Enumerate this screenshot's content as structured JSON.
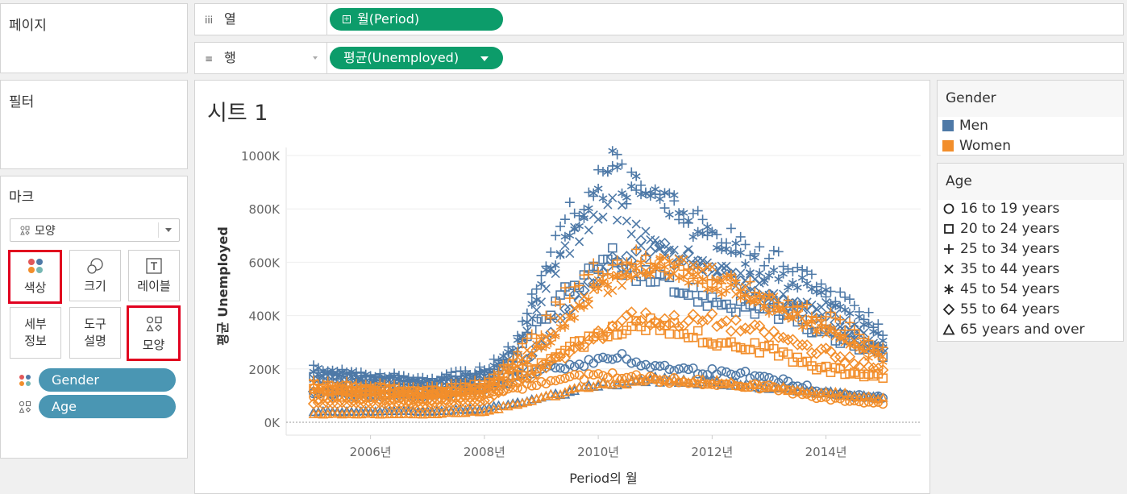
{
  "left_panel": {
    "pages_title": "페이지",
    "filters_title": "필터",
    "marks_title": "마크",
    "mark_type": "모양",
    "buttons": {
      "color": "색상",
      "size": "크기",
      "label": "레이블",
      "detail_line1": "세부",
      "detail_line2": "정보",
      "tooltip_line1": "도구",
      "tooltip_line2": "설명",
      "shape": "모양"
    },
    "mark_fields": [
      {
        "label": "Gender",
        "icon": "color-icon"
      },
      {
        "label": "Age",
        "icon": "shape-icon"
      }
    ]
  },
  "shelves": {
    "columns": {
      "label": "열",
      "icon": "iii",
      "pill": "월(Period)"
    },
    "rows": {
      "label": "행",
      "icon": "≡",
      "pill": "평균(Unemployed)"
    }
  },
  "sheet": {
    "title": "시트 1"
  },
  "legends": {
    "gender": {
      "title": "Gender",
      "items": [
        {
          "label": "Men",
          "color": "#4e79a7"
        },
        {
          "label": "Women",
          "color": "#f28e2b"
        }
      ]
    },
    "age": {
      "title": "Age",
      "items": [
        {
          "label": "16 to 19 years",
          "shape": "circle"
        },
        {
          "label": "20 to 24 years",
          "shape": "square"
        },
        {
          "label": "25 to 34 years",
          "shape": "plus"
        },
        {
          "label": "35 to 44 years",
          "shape": "cross"
        },
        {
          "label": "45 to 54 years",
          "shape": "asterisk"
        },
        {
          "label": "55 to 64 years",
          "shape": "diamond"
        },
        {
          "label": "65 years and over",
          "shape": "triangle"
        }
      ]
    }
  },
  "chart_data": {
    "type": "scatter",
    "title": "",
    "xlabel": "Period의 월",
    "ylabel": "평균 Unemployed",
    "x_ticks": [
      "2006년",
      "2008년",
      "2010년",
      "2012년",
      "2014년"
    ],
    "y_ticks": [
      "1000K",
      "800K",
      "600K",
      "400K",
      "200K",
      "0K"
    ],
    "ylim": [
      0,
      1000000
    ],
    "xlim": [
      "2005-01",
      "2015-03"
    ],
    "grid": true,
    "series": [
      {
        "gender": "Men",
        "age": "16 to 19 years",
        "points": [
          [
            "2005-01",
            110000
          ],
          [
            "2006-01",
            120000
          ],
          [
            "2007-01",
            110000
          ],
          [
            "2008-01",
            130000
          ],
          [
            "2009-01",
            190000
          ],
          [
            "2009-07",
            220000
          ],
          [
            "2010-01",
            230000
          ],
          [
            "2010-04",
            250000
          ],
          [
            "2010-07",
            240000
          ],
          [
            "2011-01",
            210000
          ],
          [
            "2012-01",
            190000
          ],
          [
            "2013-01",
            170000
          ],
          [
            "2014-01",
            110000
          ],
          [
            "2015-01",
            90000
          ]
        ]
      },
      {
        "gender": "Men",
        "age": "20 to 24 years",
        "points": [
          [
            "2005-01",
            170000
          ],
          [
            "2006-01",
            160000
          ],
          [
            "2007-01",
            140000
          ],
          [
            "2008-01",
            170000
          ],
          [
            "2008-07",
            230000
          ],
          [
            "2009-01",
            380000
          ],
          [
            "2009-07",
            520000
          ],
          [
            "2010-01",
            560000
          ],
          [
            "2010-04",
            650000
          ],
          [
            "2010-07",
            560000
          ],
          [
            "2011-01",
            530000
          ],
          [
            "2012-01",
            460000
          ],
          [
            "2013-01",
            420000
          ],
          [
            "2014-01",
            330000
          ],
          [
            "2015-01",
            250000
          ]
        ]
      },
      {
        "gender": "Men",
        "age": "25 to 34 years",
        "points": [
          [
            "2005-01",
            200000
          ],
          [
            "2006-01",
            180000
          ],
          [
            "2007-01",
            160000
          ],
          [
            "2008-01",
            200000
          ],
          [
            "2008-07",
            280000
          ],
          [
            "2009-01",
            550000
          ],
          [
            "2009-07",
            780000
          ],
          [
            "2010-01",
            930000
          ],
          [
            "2010-04",
            1010000
          ],
          [
            "2010-07",
            880000
          ],
          [
            "2011-01",
            870000
          ],
          [
            "2012-01",
            720000
          ],
          [
            "2013-01",
            620000
          ],
          [
            "2014-01",
            500000
          ],
          [
            "2015-01",
            350000
          ]
        ]
      },
      {
        "gender": "Men",
        "age": "35 to 44 years",
        "points": [
          [
            "2005-01",
            170000
          ],
          [
            "2006-01",
            150000
          ],
          [
            "2007-01",
            140000
          ],
          [
            "2008-01",
            170000
          ],
          [
            "2008-07",
            240000
          ],
          [
            "2009-01",
            480000
          ],
          [
            "2009-07",
            680000
          ],
          [
            "2010-01",
            800000
          ],
          [
            "2010-04",
            860000
          ],
          [
            "2010-07",
            720000
          ],
          [
            "2011-01",
            690000
          ],
          [
            "2012-01",
            580000
          ],
          [
            "2013-01",
            500000
          ],
          [
            "2014-01",
            420000
          ],
          [
            "2015-01",
            270000
          ]
        ]
      },
      {
        "gender": "Men",
        "age": "45 to 54 years",
        "points": [
          [
            "2005-01",
            200000
          ],
          [
            "2006-01",
            170000
          ],
          [
            "2007-01",
            150000
          ],
          [
            "2008-01",
            180000
          ],
          [
            "2008-07",
            260000
          ],
          [
            "2009-01",
            500000
          ],
          [
            "2009-07",
            720000
          ],
          [
            "2010-01",
            850000
          ],
          [
            "2010-04",
            960000
          ],
          [
            "2010-07",
            860000
          ],
          [
            "2011-01",
            870000
          ],
          [
            "2012-01",
            680000
          ],
          [
            "2013-01",
            560000
          ],
          [
            "2014-01",
            480000
          ],
          [
            "2015-01",
            300000
          ]
        ]
      },
      {
        "gender": "Men",
        "age": "55 to 64 years",
        "points": [
          [
            "2005-01",
            110000
          ],
          [
            "2006-01",
            100000
          ],
          [
            "2007-01",
            100000
          ],
          [
            "2008-01",
            120000
          ],
          [
            "2008-07",
            160000
          ],
          [
            "2009-01",
            300000
          ],
          [
            "2009-07",
            440000
          ],
          [
            "2010-01",
            550000
          ],
          [
            "2010-04",
            600000
          ],
          [
            "2010-07",
            620000
          ],
          [
            "2011-01",
            660000
          ],
          [
            "2012-01",
            560000
          ],
          [
            "2013-01",
            470000
          ],
          [
            "2014-01",
            380000
          ],
          [
            "2015-01",
            260000
          ]
        ]
      },
      {
        "gender": "Men",
        "age": "65 years and over",
        "points": [
          [
            "2005-01",
            40000
          ],
          [
            "2006-01",
            40000
          ],
          [
            "2007-01",
            40000
          ],
          [
            "2008-01",
            50000
          ],
          [
            "2009-01",
            90000
          ],
          [
            "2010-01",
            140000
          ],
          [
            "2011-01",
            160000
          ],
          [
            "2012-01",
            150000
          ],
          [
            "2013-01",
            130000
          ],
          [
            "2014-01",
            110000
          ],
          [
            "2015-01",
            90000
          ]
        ]
      },
      {
        "gender": "Women",
        "age": "16 to 19 years",
        "points": [
          [
            "2005-01",
            90000
          ],
          [
            "2006-01",
            90000
          ],
          [
            "2007-01",
            80000
          ],
          [
            "2008-01",
            100000
          ],
          [
            "2009-01",
            150000
          ],
          [
            "2010-01",
            180000
          ],
          [
            "2011-01",
            160000
          ],
          [
            "2012-01",
            150000
          ],
          [
            "2013-01",
            130000
          ],
          [
            "2014-01",
            90000
          ],
          [
            "2015-01",
            70000
          ]
        ]
      },
      {
        "gender": "Women",
        "age": "20 to 24 years",
        "points": [
          [
            "2005-01",
            120000
          ],
          [
            "2006-01",
            110000
          ],
          [
            "2007-01",
            100000
          ],
          [
            "2008-01",
            120000
          ],
          [
            "2009-01",
            220000
          ],
          [
            "2010-01",
            330000
          ],
          [
            "2011-01",
            370000
          ],
          [
            "2012-01",
            310000
          ],
          [
            "2013-01",
            270000
          ],
          [
            "2014-01",
            200000
          ],
          [
            "2015-01",
            170000
          ]
        ]
      },
      {
        "gender": "Women",
        "age": "25 to 34 years",
        "points": [
          [
            "2005-01",
            150000
          ],
          [
            "2006-01",
            140000
          ],
          [
            "2007-01",
            130000
          ],
          [
            "2008-01",
            150000
          ],
          [
            "2009-01",
            350000
          ],
          [
            "2009-07",
            500000
          ],
          [
            "2010-01",
            580000
          ],
          [
            "2010-07",
            620000
          ],
          [
            "2011-01",
            600000
          ],
          [
            "2012-01",
            540000
          ],
          [
            "2013-01",
            470000
          ],
          [
            "2014-01",
            400000
          ],
          [
            "2015-01",
            280000
          ]
        ]
      },
      {
        "gender": "Women",
        "age": "35 to 44 years",
        "points": [
          [
            "2005-01",
            140000
          ],
          [
            "2006-01",
            130000
          ],
          [
            "2007-01",
            110000
          ],
          [
            "2008-01",
            130000
          ],
          [
            "2009-01",
            300000
          ],
          [
            "2010-01",
            500000
          ],
          [
            "2010-07",
            540000
          ],
          [
            "2011-01",
            590000
          ],
          [
            "2012-01",
            560000
          ],
          [
            "2013-01",
            450000
          ],
          [
            "2014-01",
            350000
          ],
          [
            "2015-01",
            250000
          ]
        ]
      },
      {
        "gender": "Women",
        "age": "45 to 54 years",
        "points": [
          [
            "2005-01",
            120000
          ],
          [
            "2006-01",
            110000
          ],
          [
            "2007-01",
            100000
          ],
          [
            "2008-01",
            120000
          ],
          [
            "2009-01",
            280000
          ],
          [
            "2010-01",
            500000
          ],
          [
            "2010-07",
            560000
          ],
          [
            "2011-01",
            590000
          ],
          [
            "2012-01",
            530000
          ],
          [
            "2013-01",
            440000
          ],
          [
            "2014-01",
            340000
          ],
          [
            "2015-01",
            230000
          ]
        ]
      },
      {
        "gender": "Women",
        "age": "55 to 64 years",
        "points": [
          [
            "2005-01",
            70000
          ],
          [
            "2006-01",
            70000
          ],
          [
            "2007-01",
            60000
          ],
          [
            "2008-01",
            80000
          ],
          [
            "2009-01",
            200000
          ],
          [
            "2010-01",
            320000
          ],
          [
            "2010-07",
            400000
          ],
          [
            "2011-01",
            380000
          ],
          [
            "2012-01",
            380000
          ],
          [
            "2013-01",
            330000
          ],
          [
            "2014-01",
            260000
          ],
          [
            "2015-01",
            190000
          ]
        ]
      },
      {
        "gender": "Women",
        "age": "65 years and over",
        "points": [
          [
            "2005-01",
            30000
          ],
          [
            "2006-01",
            30000
          ],
          [
            "2007-01",
            30000
          ],
          [
            "2008-01",
            40000
          ],
          [
            "2009-01",
            90000
          ],
          [
            "2010-01",
            140000
          ],
          [
            "2011-01",
            160000
          ],
          [
            "2012-01",
            150000
          ],
          [
            "2013-01",
            130000
          ],
          [
            "2014-01",
            110000
          ],
          [
            "2015-01",
            90000
          ]
        ]
      }
    ]
  }
}
